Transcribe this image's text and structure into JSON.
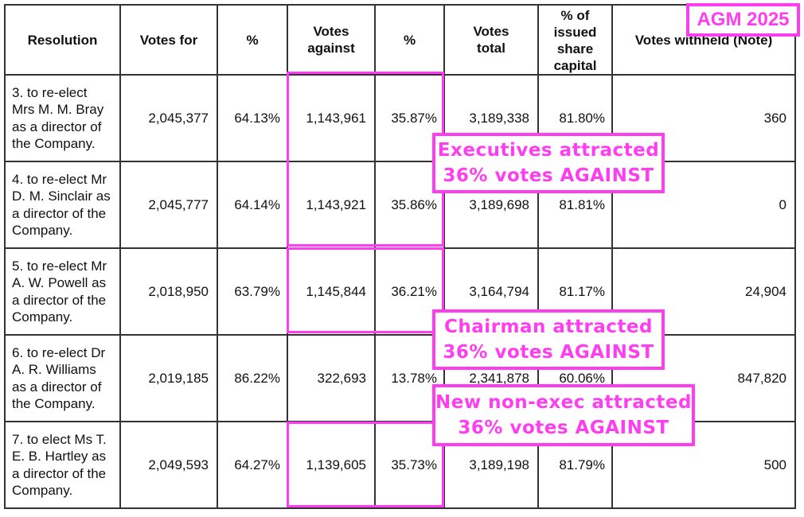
{
  "headers": [
    "Resolution",
    "Votes for",
    "%",
    "Votes against",
    "%",
    "Votes total",
    "% of issued share capital",
    "Votes withheld (Note)"
  ],
  "rows": [
    {
      "resolution": "3. to re-elect Mrs M. M. Bray as a director of the Company.",
      "votes_for": "2,045,377",
      "pct_for": "64.13%",
      "votes_against": "1,143,961",
      "pct_against": "35.87%",
      "votes_total": "3,189,338",
      "pct_capital": "81.80%",
      "withheld": "360"
    },
    {
      "resolution": "4. to re-elect Mr D. M. Sinclair as a director of the Company.",
      "votes_for": "2,045,777",
      "pct_for": "64.14%",
      "votes_against": "1,143,921",
      "pct_against": "35.86%",
      "votes_total": "3,189,698",
      "pct_capital": "81.81%",
      "withheld": "0"
    },
    {
      "resolution": "5. to re-elect Mr A. W. Powell as a director of the Company.",
      "votes_for": "2,018,950",
      "pct_for": "63.79%",
      "votes_against": "1,145,844",
      "pct_against": "36.21%",
      "votes_total": "3,164,794",
      "pct_capital": "81.17%",
      "withheld": "24,904"
    },
    {
      "resolution": "6. to re-elect Dr A. R. Williams as a director of the Company.",
      "votes_for": "2,019,185",
      "pct_for": "86.22%",
      "votes_against": "322,693",
      "pct_against": "13.78%",
      "votes_total": "2,341,878",
      "pct_capital": "60.06%",
      "withheld": "847,820"
    },
    {
      "resolution": "7. to elect Ms T. E. B. Hartley as a director of the Company.",
      "votes_for": "2,049,593",
      "pct_for": "64.27%",
      "votes_against": "1,139,605",
      "pct_against": "35.73%",
      "votes_total": "3,189,198",
      "pct_capital": "81.79%",
      "withheld": "500"
    }
  ],
  "annotations": {
    "agm": "AGM 2025",
    "executives": [
      "Executives attracted",
      "36% votes AGAINST"
    ],
    "chairman": [
      "Chairman attracted",
      "36% votes AGAINST"
    ],
    "nonexec": [
      "New non-exec attracted",
      "36% votes AGAINST"
    ]
  },
  "accent": "#ff3df0"
}
